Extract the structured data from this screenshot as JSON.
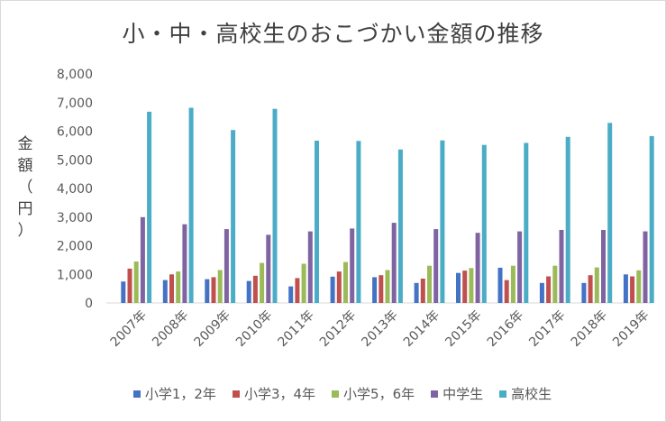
{
  "chart_data": {
    "type": "bar",
    "title": "小・中・高校生のおこづかい金額の推移",
    "ylabel": "金額（円）",
    "xlabel": "",
    "ylim": [
      0,
      8000
    ],
    "yticks": [
      "0",
      "1,000",
      "2,000",
      "3,000",
      "4,000",
      "5,000",
      "6,000",
      "7,000",
      "8,000"
    ],
    "ytick_values": [
      0,
      1000,
      2000,
      3000,
      4000,
      5000,
      6000,
      7000,
      8000
    ],
    "grid": false,
    "legend_position": "bottom",
    "categories": [
      "2007年",
      "2008年",
      "2009年",
      "2010年",
      "2011年",
      "2012年",
      "2013年",
      "2014年",
      "2015年",
      "2016年",
      "2017年",
      "2018年",
      "2019年"
    ],
    "series": [
      {
        "name": "小学1，2年",
        "color": "#4472c4",
        "values": [
          750,
          800,
          830,
          770,
          580,
          920,
          900,
          700,
          1050,
          1230,
          700,
          700,
          1000
        ]
      },
      {
        "name": "小学3，4年",
        "color": "#c0504d",
        "values": [
          1200,
          1000,
          900,
          950,
          870,
          1100,
          970,
          850,
          1130,
          800,
          930,
          970,
          930
        ]
      },
      {
        "name": "小学5，6年",
        "color": "#9bbb59",
        "values": [
          1450,
          1100,
          1150,
          1400,
          1370,
          1430,
          1150,
          1300,
          1220,
          1300,
          1300,
          1240,
          1140
        ]
      },
      {
        "name": "中学生",
        "color": "#8064a2",
        "values": [
          3000,
          2750,
          2580,
          2380,
          2500,
          2600,
          2800,
          2580,
          2450,
          2500,
          2550,
          2550,
          2500
        ]
      },
      {
        "name": "高校生",
        "color": "#4bacc6",
        "values": [
          6680,
          6820,
          6040,
          6780,
          5670,
          5660,
          5360,
          5680,
          5520,
          5590,
          5800,
          6290,
          5830
        ]
      }
    ]
  }
}
